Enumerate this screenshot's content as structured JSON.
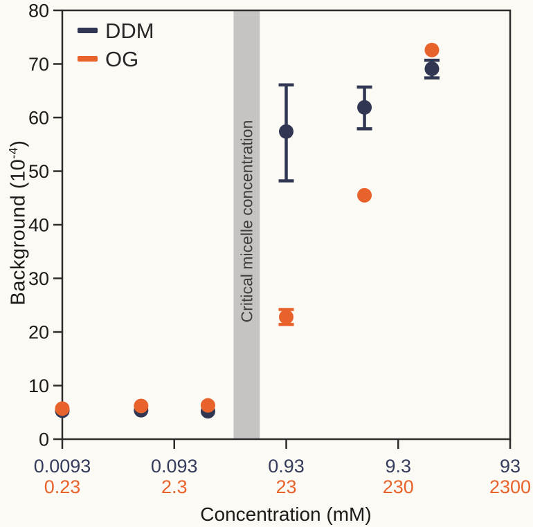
{
  "figure": {
    "background_color": "#fbfaf5",
    "frame_color": "#2e2c2a"
  },
  "chart_data": {
    "type": "scatter",
    "title": "",
    "x_axis": {
      "label": "Concentration (mM)",
      "scale": "log",
      "range_ddm_scale": [
        0.0093,
        93
      ],
      "range_og_scale": [
        0.23,
        2300
      ],
      "ticks": [
        {
          "ddm": "0.0093",
          "og": "0.23"
        },
        {
          "ddm": "0.093",
          "og": "2.3"
        },
        {
          "ddm": "0.93",
          "og": "23"
        },
        {
          "ddm": "9.3",
          "og": "230"
        },
        {
          "ddm": "93",
          "og": "2300"
        }
      ],
      "ddm_label_color": "#363d5c",
      "og_label_color": "#e8622b"
    },
    "y_axis": {
      "label": "Background (10⁻⁴)",
      "label_main": "Background (10",
      "label_sup": "-4",
      "label_end": ")",
      "range": [
        0,
        80
      ],
      "tick_step": 10,
      "tick_labels": [
        "0",
        "10",
        "20",
        "30",
        "40",
        "50",
        "60",
        "70",
        "80"
      ],
      "label_color": "#1d1b1a"
    },
    "grid": false,
    "legend_position": "top-left",
    "cmc_band": {
      "label": "Critical micelle concentration",
      "x_range_ddm_scale": [
        0.315,
        0.54
      ],
      "color": "#c5c4c2"
    },
    "series": [
      {
        "name": "DDM",
        "color": "#313752",
        "x_ddm_scale": [
          0.0093,
          0.047,
          0.186,
          0.93,
          4.65,
          18.6
        ],
        "y": [
          5.3,
          5.4,
          5.2,
          57.4,
          61.9,
          69.1
        ],
        "err_lo": [
          0,
          0,
          0,
          9.2,
          4.0,
          1.7
        ],
        "err_hi": [
          0,
          0,
          0,
          8.7,
          3.8,
          1.6
        ]
      },
      {
        "name": "OG",
        "color": "#e8622b",
        "x_ddm_scale": [
          0.0093,
          0.047,
          0.186,
          0.93,
          4.65,
          18.6
        ],
        "x_og_scale": [
          0.23,
          1.16,
          4.6,
          23,
          115,
          460
        ],
        "y": [
          5.7,
          6.2,
          6.3,
          22.8,
          45.5,
          72.6
        ],
        "err_lo": [
          0,
          0,
          0,
          1.4,
          0,
          0
        ],
        "err_hi": [
          0,
          0,
          0,
          1.4,
          0,
          0
        ]
      }
    ]
  }
}
